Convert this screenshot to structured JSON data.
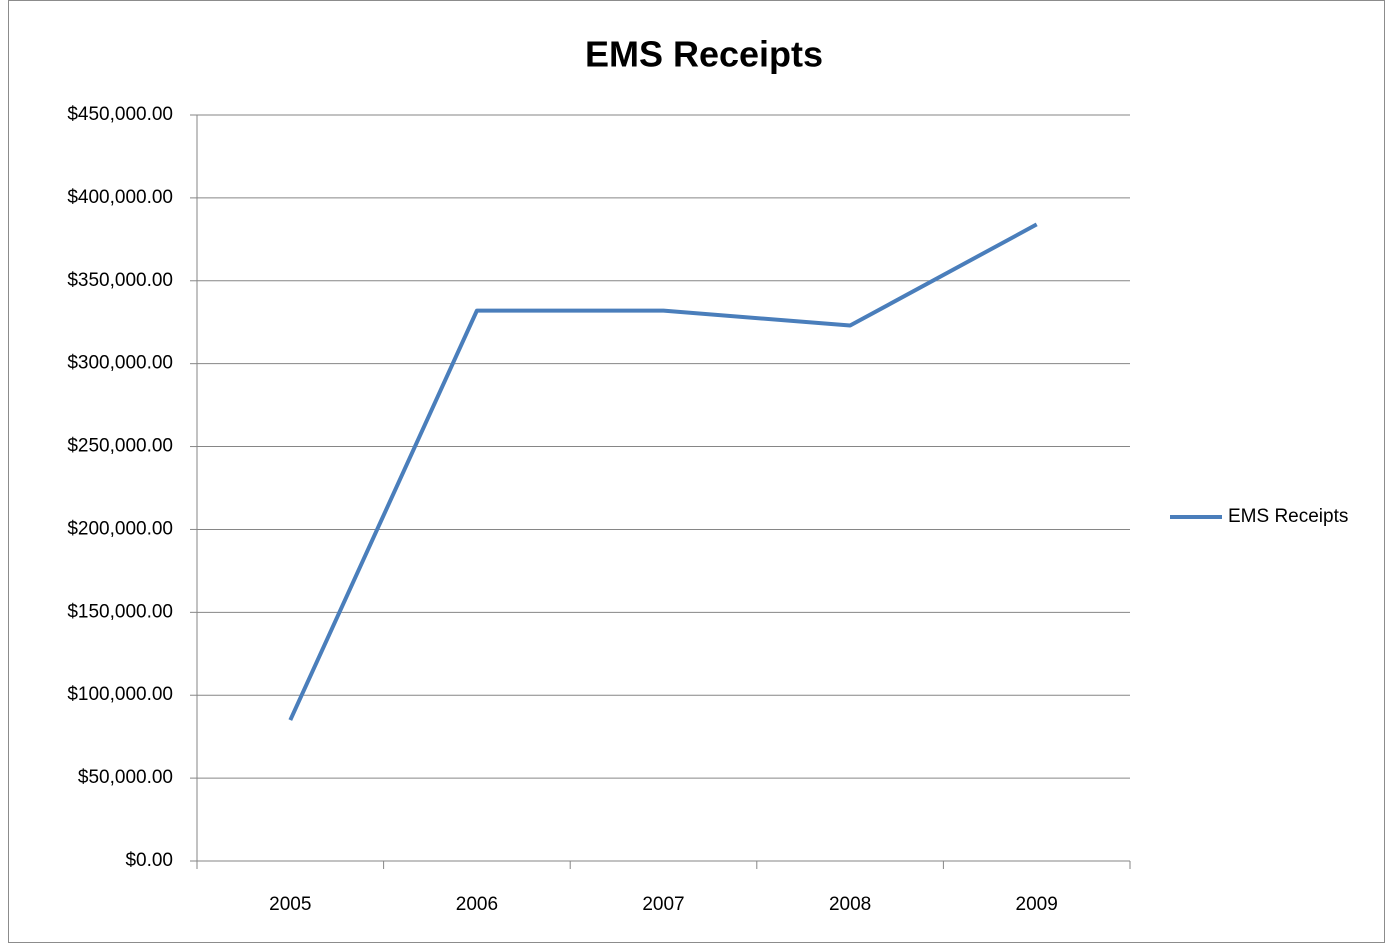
{
  "chart_data": {
    "type": "line",
    "title": "EMS Receipts",
    "categories": [
      "2005",
      "2006",
      "2007",
      "2008",
      "2009"
    ],
    "series": [
      {
        "name": "EMS Receipts",
        "color": "#4a7ebb",
        "values": [
          85000,
          332000,
          332000,
          323000,
          384000
        ]
      }
    ],
    "ylim": [
      0,
      450000
    ],
    "yticks": [
      {
        "value": 0,
        "label": "$0.00"
      },
      {
        "value": 50000,
        "label": "$50,000.00"
      },
      {
        "value": 100000,
        "label": "$100,000.00"
      },
      {
        "value": 150000,
        "label": "$150,000.00"
      },
      {
        "value": 200000,
        "label": "$200,000.00"
      },
      {
        "value": 250000,
        "label": "$250,000.00"
      },
      {
        "value": 300000,
        "label": "$300,000.00"
      },
      {
        "value": 350000,
        "label": "$350,000.00"
      },
      {
        "value": 400000,
        "label": "$400,000.00"
      },
      {
        "value": 450000,
        "label": "$450,000.00"
      }
    ],
    "grid": true,
    "legend": "right"
  }
}
